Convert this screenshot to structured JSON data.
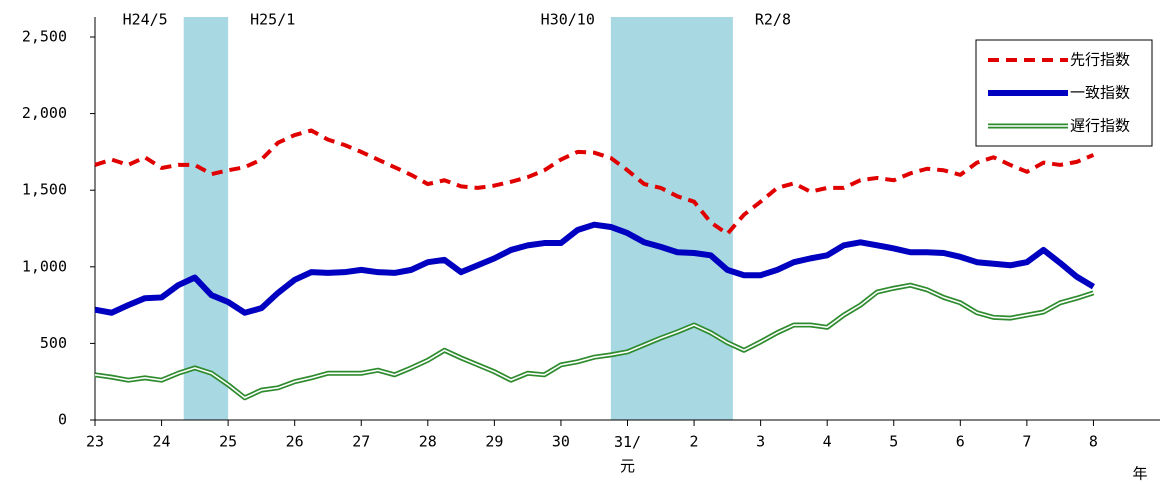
{
  "chart_data": {
    "type": "line",
    "x_label": "年",
    "x": [
      2011,
      2011.25,
      2011.5,
      2011.75,
      2012,
      2012.25,
      2012.5,
      2012.75,
      2013,
      2013.25,
      2013.5,
      2013.75,
      2014,
      2014.25,
      2014.5,
      2014.75,
      2015,
      2015.25,
      2015.5,
      2015.75,
      2016,
      2016.25,
      2016.5,
      2016.75,
      2017,
      2017.25,
      2017.5,
      2017.75,
      2018,
      2018.25,
      2018.5,
      2018.75,
      2019,
      2019.25,
      2019.5,
      2019.75,
      2020,
      2020.25,
      2020.5,
      2020.75,
      2021,
      2021.25,
      2021.5,
      2021.75,
      2022,
      2022.25,
      2022.5,
      2022.75,
      2023,
      2023.25,
      2023.5,
      2023.75,
      2024,
      2024.25,
      2024.5,
      2024.75,
      2025,
      2025.25,
      2025.5,
      2025.75,
      2026
    ],
    "series": [
      {
        "name": "先行指数",
        "color": "#e00000",
        "line_style": "dashed",
        "values": [
          1665,
          1700,
          1665,
          1715,
          1645,
          1665,
          1665,
          1605,
          1630,
          1650,
          1700,
          1810,
          1860,
          1890,
          1830,
          1795,
          1750,
          1700,
          1650,
          1600,
          1540,
          1565,
          1525,
          1515,
          1530,
          1555,
          1585,
          1630,
          1700,
          1750,
          1745,
          1710,
          1630,
          1540,
          1515,
          1460,
          1425,
          1290,
          1215,
          1340,
          1425,
          1515,
          1545,
          1490,
          1515,
          1515,
          1565,
          1580,
          1565,
          1610,
          1640,
          1630,
          1600,
          1680,
          1715,
          1665,
          1620,
          1680,
          1665,
          1685,
          1730
        ]
      },
      {
        "name": "一致指数",
        "color": "#0000c0",
        "line_style": "solid",
        "values": [
          720,
          700,
          750,
          795,
          800,
          880,
          930,
          815,
          770,
          700,
          730,
          830,
          915,
          965,
          960,
          965,
          980,
          965,
          960,
          980,
          1030,
          1045,
          965,
          1010,
          1055,
          1110,
          1140,
          1155,
          1155,
          1240,
          1275,
          1260,
          1220,
          1160,
          1130,
          1095,
          1090,
          1075,
          980,
          945,
          945,
          980,
          1030,
          1055,
          1075,
          1140,
          1160,
          1140,
          1120,
          1095,
          1095,
          1090,
          1065,
          1030,
          1020,
          1010,
          1030,
          1110,
          1025,
          935,
          870
        ]
      },
      {
        "name": "遅行指数",
        "color": "#2e8b2e",
        "line_style": "double",
        "values": [
          295,
          280,
          260,
          275,
          260,
          305,
          340,
          305,
          230,
          145,
          195,
          210,
          250,
          275,
          305,
          305,
          305,
          325,
          295,
          340,
          390,
          455,
          405,
          360,
          315,
          260,
          305,
          295,
          360,
          380,
          410,
          425,
          445,
          490,
          535,
          575,
          620,
          570,
          505,
          455,
          510,
          570,
          620,
          620,
          605,
          685,
          750,
          835,
          860,
          880,
          850,
          800,
          765,
          700,
          670,
          665,
          685,
          705,
          765,
          795,
          830
        ]
      }
    ],
    "shaded": [
      {
        "start": 2012.333,
        "end": 2013.0,
        "start_label": "H24/5",
        "end_label": "H25/1"
      },
      {
        "start": 2018.75,
        "end": 2020.583,
        "start_label": "H30/10",
        "end_label": "R2/8"
      }
    ],
    "shade_color": "#a8d8e2",
    "xlim": [
      2011,
      2027
    ],
    "xticks": [
      {
        "value": 2011,
        "label": "23"
      },
      {
        "value": 2012,
        "label": "24"
      },
      {
        "value": 2013,
        "label": "25"
      },
      {
        "value": 2014,
        "label": "26"
      },
      {
        "value": 2015,
        "label": "27"
      },
      {
        "value": 2016,
        "label": "28"
      },
      {
        "value": 2017,
        "label": "29"
      },
      {
        "value": 2018,
        "label": "30"
      },
      {
        "value": 2019,
        "label": "31/\n元"
      },
      {
        "value": 2020,
        "label": "2"
      },
      {
        "value": 2021,
        "label": "3"
      },
      {
        "value": 2022,
        "label": "4"
      },
      {
        "value": 2023,
        "label": "5"
      },
      {
        "value": 2024,
        "label": "6"
      },
      {
        "value": 2025,
        "label": "7"
      },
      {
        "value": 2026,
        "label": "8"
      }
    ],
    "ylim": [
      0,
      2500
    ],
    "yticks": [
      0,
      500,
      {
        "value": 1000,
        "label": "1,000"
      },
      {
        "value": 1500,
        "label": "1,500"
      },
      {
        "value": 2000,
        "label": "2,000"
      },
      {
        "value": 2500,
        "label": "2,500"
      }
    ],
    "grid": false,
    "legend_position": "top-right"
  }
}
